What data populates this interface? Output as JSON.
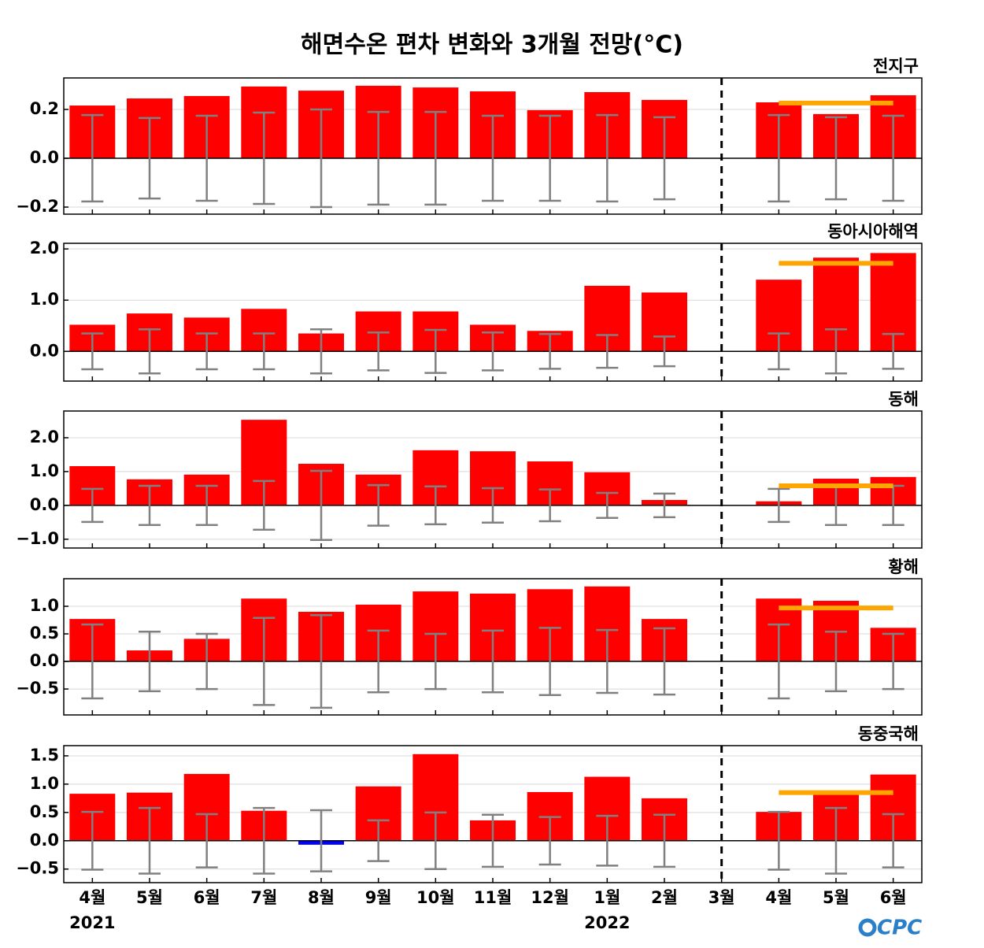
{
  "title": "해면수온 편차 변화와 3개월 전망(°C)",
  "categories": [
    "4월",
    "5월",
    "6월",
    "7월",
    "8월",
    "9월",
    "10월",
    "11월",
    "12월",
    "1월",
    "2월",
    "3월",
    "4월",
    "5월",
    "6월"
  ],
  "years": [
    "2021",
    null,
    null,
    null,
    null,
    null,
    null,
    null,
    null,
    "2022",
    null,
    null,
    null,
    null,
    null
  ],
  "logo": "CPC",
  "chart_data": [
    {
      "type": "bar",
      "title": "전지구",
      "color": "#ff0000",
      "negative_color": "#0000ff",
      "error_color": "#808080",
      "outlook_color": "#ffa500",
      "values": [
        0.216,
        0.245,
        0.255,
        0.294,
        0.277,
        0.297,
        0.29,
        0.274,
        0.197,
        0.271,
        0.239,
        null,
        0.229,
        0.181,
        0.258
      ],
      "errors": [
        0.177,
        0.165,
        0.174,
        0.187,
        0.2,
        0.19,
        0.19,
        0.174,
        0.174,
        0.177,
        0.168,
        null,
        0.177,
        0.168,
        0.174
      ],
      "outlook": 0.226,
      "ylim": [
        -0.229,
        0.329
      ],
      "yticks": [
        {
          "value": -0.2,
          "label": "−0.2"
        },
        {
          "value": 0,
          "label": "0.0"
        },
        0.2
      ],
      "grid": true
    },
    {
      "type": "bar",
      "title": "동아시아해역",
      "color": "#ff0000",
      "negative_color": "#0000ff",
      "error_color": "#808080",
      "outlook_color": "#ffa500",
      "values": [
        0.52,
        0.74,
        0.66,
        0.83,
        0.35,
        0.78,
        0.78,
        0.52,
        0.4,
        1.28,
        1.15,
        null,
        1.4,
        1.83,
        1.92
      ],
      "errors": [
        0.35,
        0.43,
        0.35,
        0.35,
        0.43,
        0.37,
        0.42,
        0.37,
        0.34,
        0.32,
        0.29,
        null,
        0.35,
        0.43,
        0.34
      ],
      "outlook": 1.72,
      "ylim": [
        -0.58,
        2.11
      ],
      "yticks": [
        {
          "value": 0,
          "label": "0.0"
        },
        {
          "value": 1,
          "label": "1.0"
        },
        {
          "value": 2,
          "label": "2.0"
        }
      ],
      "grid": true
    },
    {
      "type": "bar",
      "title": "동해",
      "color": "#ff0000",
      "negative_color": "#0000ff",
      "error_color": "#808080",
      "outlook_color": "#ffa500",
      "values": [
        1.16,
        0.77,
        0.91,
        2.53,
        1.23,
        0.91,
        1.63,
        1.6,
        1.3,
        0.98,
        0.16,
        null,
        0.12,
        0.79,
        0.84
      ],
      "errors": [
        0.49,
        0.58,
        0.58,
        0.72,
        1.02,
        0.6,
        0.56,
        0.51,
        0.47,
        0.37,
        0.35,
        null,
        0.49,
        0.58,
        0.58
      ],
      "outlook": 0.58,
      "ylim": [
        -1.26,
        2.79
      ],
      "yticks": [
        {
          "value": -1,
          "label": "−1.0"
        },
        {
          "value": 0,
          "label": "0.0"
        },
        {
          "value": 1,
          "label": "1.0"
        },
        {
          "value": 2,
          "label": "2.0"
        }
      ],
      "grid": true
    },
    {
      "type": "bar",
      "title": "황해",
      "color": "#ff0000",
      "negative_color": "#0000ff",
      "error_color": "#808080",
      "outlook_color": "#ffa500",
      "values": [
        0.77,
        0.2,
        0.41,
        1.14,
        0.9,
        1.03,
        1.27,
        1.23,
        1.31,
        1.36,
        0.77,
        null,
        1.14,
        1.1,
        0.61
      ],
      "errors": [
        0.67,
        0.54,
        0.5,
        0.79,
        0.84,
        0.56,
        0.5,
        0.56,
        0.61,
        0.57,
        0.6,
        null,
        0.67,
        0.54,
        0.5
      ],
      "outlook": 0.97,
      "ylim": [
        -0.97,
        1.5
      ],
      "yticks": [
        {
          "value": -0.5,
          "label": "−0.5"
        },
        {
          "value": 0,
          "label": "0.0"
        },
        0.5,
        {
          "value": 1,
          "label": "1.0"
        }
      ],
      "grid": true
    },
    {
      "type": "bar",
      "title": "동중국해",
      "color": "#ff0000",
      "negative_color": "#0000ff",
      "error_color": "#808080",
      "outlook_color": "#ffa500",
      "values": [
        0.83,
        0.85,
        1.18,
        0.53,
        -0.07,
        0.96,
        1.53,
        0.36,
        0.86,
        1.13,
        0.75,
        null,
        0.51,
        0.83,
        1.17
      ],
      "errors": [
        0.51,
        0.58,
        0.47,
        0.58,
        0.54,
        0.36,
        0.5,
        0.46,
        0.42,
        0.44,
        0.46,
        null,
        0.51,
        0.58,
        0.47
      ],
      "outlook": 0.85,
      "ylim": [
        -0.74,
        1.68
      ],
      "yticks": [
        {
          "value": -0.5,
          "label": "−0.5"
        },
        {
          "value": 0,
          "label": "0.0"
        },
        0.5,
        {
          "value": 1,
          "label": "1.0"
        },
        1.5
      ],
      "grid": true
    }
  ]
}
